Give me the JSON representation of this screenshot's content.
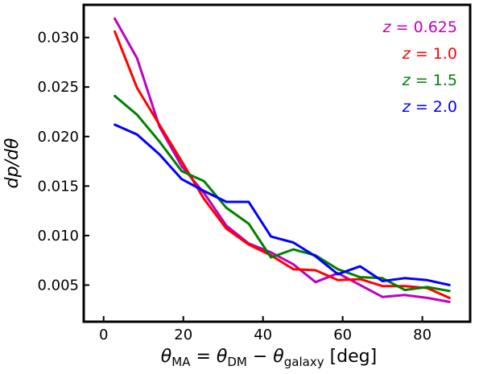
{
  "chart_data": {
    "type": "line",
    "xlabel_parts": {
      "theta": "θ",
      "sub_ma": "MA",
      "eq": " = ",
      "sub_dm": "DM",
      "minus": " − ",
      "sub_galaxy": "galaxy",
      "unit": " [deg]"
    },
    "ylabel": "dp/dθ",
    "xlim": [
      -5,
      92
    ],
    "ylim": [
      0.0013,
      0.0333
    ],
    "xticks": [
      0,
      20,
      40,
      60,
      80
    ],
    "xtick_labels": [
      "0",
      "20",
      "40",
      "60",
      "80"
    ],
    "yticks": [
      0.005,
      0.01,
      0.015,
      0.02,
      0.025,
      0.03
    ],
    "ytick_labels": [
      "0.005",
      "0.010",
      "0.015",
      "0.020",
      "0.025",
      "0.030"
    ],
    "legend_position": "top-right",
    "x": [
      2.8,
      8.4,
      14,
      19.6,
      25.2,
      30.8,
      36.4,
      42,
      47.6,
      53.2,
      58.8,
      64.4,
      70,
      75.6,
      81.2,
      86.8
    ],
    "series": [
      {
        "name": "z = 0.625",
        "prefix": "z",
        "value": "0.625",
        "color": "#bf00bf",
        "values": [
          0.0319,
          0.0279,
          0.021,
          0.017,
          0.0143,
          0.011,
          0.0092,
          0.0083,
          0.0071,
          0.0053,
          0.0062,
          0.005,
          0.0038,
          0.004,
          0.0037,
          0.0033
        ]
      },
      {
        "name": "z = 1.0",
        "prefix": "z",
        "value": "1.0",
        "color": "#ff0000",
        "values": [
          0.0306,
          0.0249,
          0.0212,
          0.0175,
          0.0137,
          0.0107,
          0.0091,
          0.008,
          0.0066,
          0.0065,
          0.0055,
          0.0056,
          0.0049,
          0.0049,
          0.0047,
          0.0037
        ]
      },
      {
        "name": "z = 1.5",
        "prefix": "z",
        "value": "1.5",
        "color": "#008000",
        "values": [
          0.0241,
          0.0222,
          0.0195,
          0.0165,
          0.0155,
          0.0128,
          0.0112,
          0.0078,
          0.0086,
          0.008,
          0.0066,
          0.0058,
          0.0057,
          0.0045,
          0.0048,
          0.0044
        ]
      },
      {
        "name": "z = 2.0",
        "prefix": "z",
        "value": "2.0",
        "color": "#0000ff",
        "values": [
          0.0212,
          0.0202,
          0.0182,
          0.0157,
          0.0145,
          0.0134,
          0.0134,
          0.0099,
          0.0093,
          0.0079,
          0.0061,
          0.0069,
          0.0054,
          0.0057,
          0.0055,
          0.005
        ]
      }
    ]
  }
}
